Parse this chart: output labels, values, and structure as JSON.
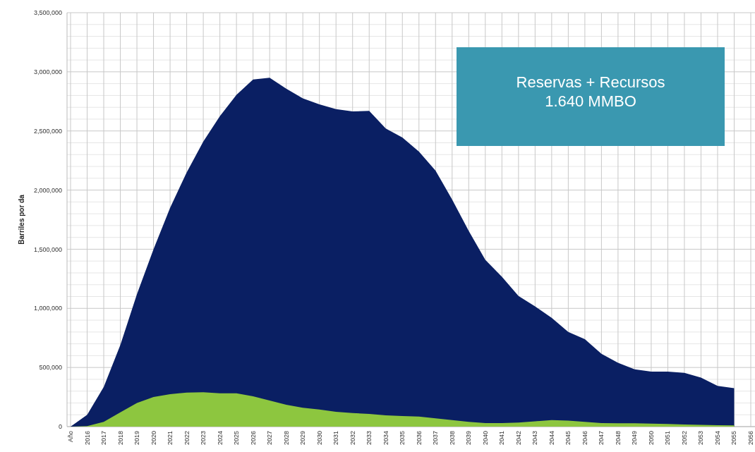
{
  "chart_data": {
    "type": "area",
    "ylabel": "Barriles por da",
    "categories": [
      "Año",
      "2016",
      "2017",
      "2018",
      "2019",
      "2020",
      "2021",
      "2022",
      "2023",
      "2024",
      "2025",
      "2026",
      "2027",
      "2028",
      "2029",
      "2030",
      "2031",
      "2032",
      "2033",
      "2034",
      "2035",
      "2036",
      "2037",
      "2038",
      "2039",
      "2040",
      "2041",
      "2042",
      "2043",
      "2044",
      "2045",
      "2046",
      "2047",
      "2048",
      "2049",
      "2050",
      "2051",
      "2052",
      "2053",
      "2054",
      "2055",
      "2056"
    ],
    "series": [
      {
        "color": "#0a1f63",
        "values": [
          0,
          100000,
          335000,
          690000,
          1120000,
          1500000,
          1850000,
          2150000,
          2410000,
          2625000,
          2805000,
          2935000,
          2950000,
          2857000,
          2775000,
          2725000,
          2685000,
          2665000,
          2670000,
          2520000,
          2445000,
          2325000,
          2165000,
          1920000,
          1655000,
          1410000,
          1267000,
          1105000,
          1016000,
          920000,
          800000,
          740000,
          615000,
          540000,
          485000,
          465000,
          465000,
          455000,
          415000,
          345000,
          325000,
          null
        ]
      },
      {
        "color": "#8dc63f",
        "values": [
          0,
          5000,
          40000,
          120000,
          200000,
          250000,
          275000,
          287000,
          290000,
          282000,
          282000,
          257000,
          220000,
          185000,
          160000,
          145000,
          125000,
          115000,
          108000,
          95000,
          90000,
          85000,
          70000,
          55000,
          40000,
          30000,
          30000,
          35000,
          45000,
          55000,
          50000,
          40000,
          30000,
          28000,
          28000,
          25000,
          22000,
          18000,
          15000,
          12000,
          10000,
          null
        ]
      }
    ],
    "ylim": [
      0,
      3500000
    ],
    "yticks": [
      {
        "value": 0,
        "label": "0"
      },
      {
        "value": 500000,
        "label": "500,000"
      },
      {
        "value": 1000000,
        "label": "1,000,000"
      },
      {
        "value": 1500000,
        "label": "1,500,000"
      },
      {
        "value": 2000000,
        "label": "2,000,000"
      },
      {
        "value": 2500000,
        "label": "2,500,000"
      },
      {
        "value": 3000000,
        "label": "3,000,000"
      },
      {
        "value": 3500000,
        "label": "3,500,000"
      }
    ],
    "grid": true,
    "annotations": [
      "Reservas + Recursos\n1.640 MMBO"
    ]
  }
}
